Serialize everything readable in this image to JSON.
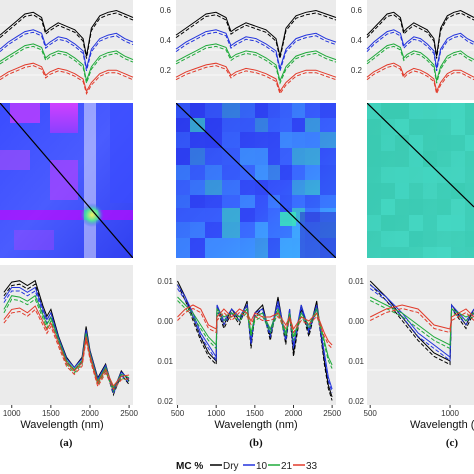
{
  "chart_data": [
    {
      "type": "line",
      "panel": "a",
      "row": "reflectance",
      "xlim": [
        900,
        2500
      ],
      "ylim": [
        0.05,
        0.62
      ],
      "x": [
        900,
        1000,
        1100,
        1200,
        1300,
        1400,
        1450,
        1500,
        1600,
        1700,
        1800,
        1900,
        1940,
        2000,
        2100,
        2200,
        2300,
        2400,
        2500
      ],
      "series": [
        {
          "name": "Dry",
          "values": [
            0.42,
            0.46,
            0.5,
            0.54,
            0.55,
            0.52,
            0.44,
            0.46,
            0.49,
            0.47,
            0.45,
            0.4,
            0.3,
            0.46,
            0.53,
            0.55,
            0.56,
            0.54,
            0.52
          ]
        },
        {
          "name": "10",
          "values": [
            0.34,
            0.38,
            0.41,
            0.44,
            0.45,
            0.43,
            0.36,
            0.38,
            0.41,
            0.4,
            0.37,
            0.33,
            0.23,
            0.34,
            0.4,
            0.42,
            0.43,
            0.4,
            0.38
          ]
        },
        {
          "name": "21",
          "values": [
            0.27,
            0.3,
            0.33,
            0.36,
            0.37,
            0.35,
            0.29,
            0.31,
            0.33,
            0.32,
            0.29,
            0.25,
            0.16,
            0.24,
            0.3,
            0.32,
            0.33,
            0.3,
            0.28
          ]
        },
        {
          "name": "33",
          "values": [
            0.18,
            0.21,
            0.23,
            0.25,
            0.26,
            0.24,
            0.19,
            0.21,
            0.23,
            0.22,
            0.2,
            0.17,
            0.1,
            0.15,
            0.2,
            0.22,
            0.22,
            0.2,
            0.18
          ]
        }
      ]
    },
    {
      "type": "line",
      "panel": "b",
      "row": "reflectance",
      "xlim": [
        900,
        2500
      ],
      "ylim": [
        0.05,
        0.62
      ],
      "yticks": [
        "0.6",
        "0.4",
        "0.2"
      ],
      "x": [
        900,
        1000,
        1100,
        1200,
        1300,
        1400,
        1450,
        1500,
        1600,
        1700,
        1800,
        1900,
        1940,
        2000,
        2100,
        2200,
        2300,
        2400,
        2500
      ],
      "series": [
        {
          "name": "Dry",
          "values": [
            0.42,
            0.46,
            0.5,
            0.54,
            0.55,
            0.52,
            0.44,
            0.46,
            0.49,
            0.47,
            0.45,
            0.4,
            0.3,
            0.46,
            0.53,
            0.55,
            0.56,
            0.54,
            0.52
          ]
        },
        {
          "name": "10",
          "values": [
            0.34,
            0.38,
            0.41,
            0.44,
            0.45,
            0.43,
            0.36,
            0.38,
            0.41,
            0.4,
            0.37,
            0.33,
            0.23,
            0.34,
            0.4,
            0.42,
            0.43,
            0.4,
            0.38
          ]
        },
        {
          "name": "21",
          "values": [
            0.27,
            0.3,
            0.33,
            0.36,
            0.37,
            0.35,
            0.29,
            0.31,
            0.33,
            0.32,
            0.29,
            0.25,
            0.16,
            0.24,
            0.3,
            0.32,
            0.33,
            0.3,
            0.28
          ]
        },
        {
          "name": "33",
          "values": [
            0.18,
            0.21,
            0.23,
            0.25,
            0.26,
            0.24,
            0.19,
            0.21,
            0.23,
            0.22,
            0.2,
            0.17,
            0.1,
            0.15,
            0.2,
            0.22,
            0.22,
            0.2,
            0.18
          ]
        }
      ]
    },
    {
      "type": "line",
      "panel": "c",
      "row": "reflectance",
      "xlim": [
        900,
        2500
      ],
      "ylim": [
        0.05,
        0.62
      ],
      "yticks": [
        "0.6",
        "0.4",
        "0.2"
      ],
      "x": [
        900,
        1000,
        1100,
        1200,
        1300,
        1400,
        1450,
        1500,
        1600,
        1700,
        1800,
        1900,
        1940,
        2000,
        2100,
        2200,
        2300,
        2400,
        2500
      ],
      "series": [
        {
          "name": "Dry",
          "values": [
            0.42,
            0.46,
            0.5,
            0.54,
            0.55,
            0.52,
            0.44,
            0.46,
            0.49,
            0.47,
            0.45,
            0.4,
            0.3,
            0.46,
            0.53,
            0.55,
            0.56,
            0.54,
            0.52
          ]
        },
        {
          "name": "10",
          "values": [
            0.34,
            0.38,
            0.41,
            0.44,
            0.45,
            0.43,
            0.36,
            0.38,
            0.41,
            0.4,
            0.37,
            0.33,
            0.23,
            0.34,
            0.4,
            0.42,
            0.43,
            0.4,
            0.38
          ]
        },
        {
          "name": "21",
          "values": [
            0.27,
            0.3,
            0.33,
            0.36,
            0.37,
            0.35,
            0.29,
            0.31,
            0.33,
            0.32,
            0.29,
            0.25,
            0.16,
            0.24,
            0.3,
            0.32,
            0.33,
            0.3,
            0.28
          ]
        },
        {
          "name": "33",
          "values": [
            0.18,
            0.21,
            0.23,
            0.25,
            0.26,
            0.24,
            0.19,
            0.21,
            0.23,
            0.22,
            0.2,
            0.17,
            0.1,
            0.15,
            0.2,
            0.22,
            0.22,
            0.2,
            0.18
          ]
        }
      ]
    },
    {
      "type": "heatmap",
      "panel": "a",
      "row": "correlation",
      "diagonal": true,
      "colors": [
        "#3a4cff",
        "#c24cf0",
        "#c800ff",
        "#38e0b8",
        "#f0e040"
      ]
    },
    {
      "type": "heatmap",
      "panel": "b",
      "row": "correlation",
      "diagonal": true,
      "colors": [
        "#2c3cf0",
        "#3a70ff",
        "#42b8ff",
        "#3cd8c0"
      ]
    },
    {
      "type": "heatmap",
      "panel": "c",
      "row": "correlation",
      "diagonal": true,
      "colors": [
        "#38c8b0",
        "#44d8c4"
      ]
    },
    {
      "type": "line",
      "panel": "a",
      "row": "loadings",
      "xlim": [
        850,
        2550
      ],
      "xticks": [
        1000,
        1500,
        2000,
        2500
      ],
      "xlabel": "Wavelength (nm)",
      "x": [
        900,
        1000,
        1100,
        1200,
        1300,
        1400,
        1450,
        1500,
        1600,
        1700,
        1800,
        1900,
        1950,
        2000,
        2100,
        2200,
        2300,
        2400,
        2500
      ],
      "series": [
        {
          "name": "Dry",
          "values": [
            0.55,
            0.7,
            0.72,
            0.65,
            0.72,
            0.35,
            0.2,
            0.3,
            -0.1,
            -0.4,
            -0.55,
            -0.4,
            0.05,
            -0.3,
            -0.7,
            -0.5,
            -0.9,
            -0.6,
            -0.75
          ]
        },
        {
          "name": "10",
          "values": [
            0.45,
            0.62,
            0.62,
            0.55,
            0.62,
            0.3,
            0.15,
            0.25,
            -0.12,
            -0.42,
            -0.55,
            -0.42,
            0.0,
            -0.32,
            -0.72,
            -0.52,
            -0.88,
            -0.62,
            -0.72
          ]
        },
        {
          "name": "21",
          "values": [
            0.3,
            0.5,
            0.48,
            0.42,
            0.5,
            0.22,
            0.08,
            0.18,
            -0.15,
            -0.45,
            -0.58,
            -0.45,
            -0.05,
            -0.35,
            -0.75,
            -0.55,
            -0.85,
            -0.65,
            -0.7
          ]
        },
        {
          "name": "33",
          "values": [
            0.15,
            0.3,
            0.32,
            0.25,
            0.35,
            0.12,
            0.0,
            0.1,
            -0.2,
            -0.48,
            -0.6,
            -0.48,
            -0.1,
            -0.38,
            -0.78,
            -0.58,
            -0.82,
            -0.68,
            -0.66
          ]
        }
      ]
    },
    {
      "type": "line",
      "panel": "b",
      "row": "loadings",
      "xlim": [
        480,
        2550
      ],
      "ylim": [
        -0.021,
        0.014
      ],
      "xticks": [
        500,
        1000,
        1500,
        2000,
        2500
      ],
      "yticks": [
        0.01,
        0.0,
        -0.01,
        -0.02
      ],
      "ytick_labels": [
        "0.01",
        "0.00",
        "0.01",
        "0.02"
      ],
      "xlabel": "Wavelength (nm)",
      "x": [
        500,
        600,
        700,
        800,
        900,
        1000,
        1010,
        1100,
        1200,
        1300,
        1400,
        1450,
        1500,
        1600,
        1700,
        1800,
        1900,
        1950,
        2000,
        2100,
        2200,
        2300,
        2400,
        2450,
        2500
      ],
      "series": [
        {
          "name": "Dry",
          "values": [
            0.01,
            0.006,
            0.001,
            -0.004,
            -0.008,
            -0.01,
            0.004,
            -0.001,
            0.003,
            0.0,
            0.005,
            -0.006,
            0.002,
            0.004,
            -0.004,
            0.006,
            -0.005,
            0.003,
            -0.008,
            0.004,
            -0.003,
            0.005,
            -0.01,
            -0.016,
            -0.019
          ]
        },
        {
          "name": "10",
          "values": [
            0.009,
            0.006,
            0.002,
            -0.003,
            -0.006,
            -0.009,
            0.004,
            0.0,
            0.003,
            0.001,
            0.004,
            -0.005,
            0.002,
            0.003,
            -0.003,
            0.005,
            -0.004,
            0.003,
            -0.006,
            0.004,
            -0.002,
            0.004,
            -0.008,
            -0.014,
            -0.017
          ]
        },
        {
          "name": "21",
          "values": [
            0.006,
            0.004,
            0.002,
            -0.001,
            -0.004,
            -0.006,
            0.003,
            0.001,
            0.002,
            0.001,
            0.003,
            -0.003,
            0.001,
            0.002,
            -0.002,
            0.003,
            -0.003,
            0.002,
            -0.004,
            0.002,
            -0.001,
            0.003,
            -0.005,
            -0.009,
            -0.011
          ]
        },
        {
          "name": "33",
          "values": [
            0.001,
            0.003,
            0.004,
            0.003,
            -0.001,
            -0.002,
            0.001,
            0.003,
            0.001,
            0.003,
            0.002,
            0.0,
            0.002,
            0.001,
            0.001,
            0.002,
            -0.001,
            0.001,
            -0.002,
            0.001,
            0.0,
            0.002,
            -0.003,
            -0.005,
            -0.006
          ]
        }
      ]
    },
    {
      "type": "line",
      "panel": "c",
      "row": "loadings",
      "xlim": [
        480,
        1150
      ],
      "ylim": [
        -0.021,
        0.014
      ],
      "xticks": [
        500,
        1000
      ],
      "yticks": [
        0.01,
        0.0,
        -0.01,
        -0.02
      ],
      "ytick_labels": [
        "0.01",
        "0.00",
        "0.01",
        "0.02"
      ],
      "xlabel": "Wavelength (",
      "x": [
        500,
        600,
        700,
        800,
        900,
        1000,
        1010,
        1100,
        1150
      ],
      "series": [
        {
          "name": "Dry",
          "values": [
            0.01,
            0.006,
            0.001,
            -0.004,
            -0.008,
            -0.01,
            0.004,
            -0.001,
            0.003
          ]
        },
        {
          "name": "10",
          "values": [
            0.009,
            0.006,
            0.002,
            -0.003,
            -0.006,
            -0.009,
            0.004,
            0.0,
            0.003
          ]
        },
        {
          "name": "21",
          "values": [
            0.006,
            0.004,
            0.002,
            -0.001,
            -0.004,
            -0.006,
            0.003,
            0.001,
            0.002
          ]
        },
        {
          "name": "33",
          "values": [
            0.001,
            0.003,
            0.004,
            0.003,
            -0.001,
            -0.002,
            0.001,
            0.003,
            0.001
          ]
        }
      ]
    }
  ],
  "panel_labels": [
    "(a)",
    "(b)",
    "(c)"
  ],
  "legend": {
    "title": "MC %",
    "items": [
      {
        "label": "Dry",
        "color": "#000000",
        "dash": "solid"
      },
      {
        "label": "10",
        "color": "#2233dd",
        "dash": "solid"
      },
      {
        "label": "21",
        "color": "#1faa3a",
        "dash": "solid"
      },
      {
        "label": "33",
        "color": "#e23a2a",
        "dash": "solid"
      }
    ]
  },
  "colors": {
    "Dry": "#000000",
    "10": "#2233dd",
    "21": "#1faa3a",
    "33": "#e23a2a"
  }
}
